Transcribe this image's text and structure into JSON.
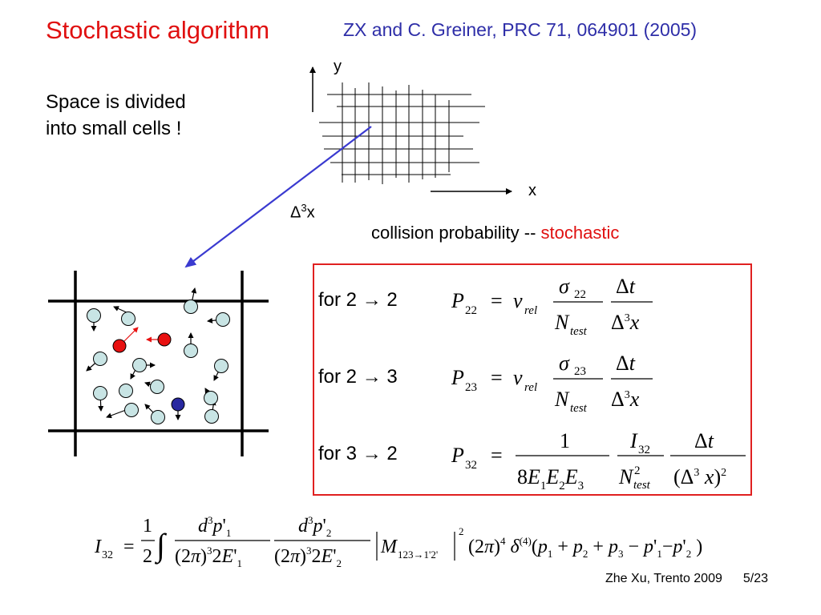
{
  "header": {
    "title": "Stochastic algorithm",
    "reference": "ZX and C. Greiner,  PRC 71, 064901 (2005)"
  },
  "intro": {
    "line1": "Space is divided",
    "line2": "into small cells !"
  },
  "grid_diagram": {
    "y_label": "y",
    "x_label": "x",
    "cell_label_delta": "Δ",
    "cell_label_exp": "3",
    "cell_label_var": "x"
  },
  "probability_line": {
    "text": "collision probability -- ",
    "emphasis": "stochastic"
  },
  "formulas": [
    {
      "process": "for 2 → 2",
      "lhs": "P",
      "lhs_sub": "22",
      "sigma_sub": "22"
    },
    {
      "process": "for 2 → 3",
      "lhs": "P",
      "lhs_sub": "23",
      "sigma_sub": "23"
    },
    {
      "process": "for 3 → 2",
      "lhs": "P",
      "lhs_sub": "32",
      "I_sub": "32"
    }
  ],
  "integral": {
    "lhs": "I",
    "lhs_sub": "32",
    "matrix_element_sub": "123→1'2'"
  },
  "footer": {
    "author": "Zhe Xu, Trento 2009",
    "page": "5/23"
  },
  "colors": {
    "title": "#e01010",
    "reference": "#2e2ea8",
    "box_border": "#e02020",
    "arrow": "#3a3ad0",
    "particle_fill": "#c8e4e4",
    "particle_red": "#e81010",
    "particle_blue": "#2828a0"
  }
}
